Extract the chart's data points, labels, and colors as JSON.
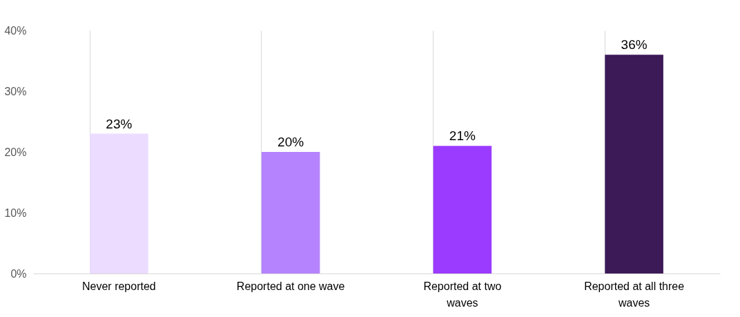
{
  "chart_data": {
    "type": "bar",
    "categories": [
      "Never reported",
      "Reported at one wave",
      "Reported at two waves",
      "Reported at all three waves"
    ],
    "values": [
      23,
      20,
      21,
      36
    ],
    "colors": [
      "#ecdcff",
      "#b683ff",
      "#9b3bff",
      "#3c1a58"
    ],
    "value_labels": [
      "23%",
      "20%",
      "21%",
      "36%"
    ],
    "ylim": [
      0,
      40
    ],
    "yticks": [
      {
        "value": 0,
        "label": "0%"
      },
      {
        "value": 10,
        "label": "10%"
      },
      {
        "value": 20,
        "label": "20%"
      },
      {
        "value": 30,
        "label": "30%"
      },
      {
        "value": 40,
        "label": "40%"
      }
    ],
    "grid": "x",
    "legend": false
  }
}
